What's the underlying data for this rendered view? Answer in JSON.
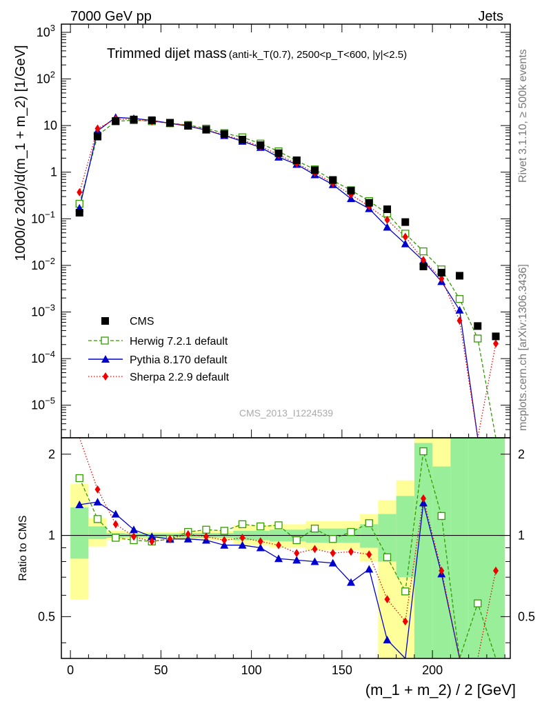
{
  "header": {
    "left": "7000 GeV pp",
    "right": "Jets"
  },
  "side_labels": {
    "top": "Rivet 3.1.10, ≥ 500k events",
    "bottom": "mcplots.cern.ch [arXiv:1306.3436]"
  },
  "chart_data": {
    "type": "scatter",
    "title": "Trimmed dijet mass",
    "subtitle": "(anti-k_T(0.7), 2500<p_T<600, |y|<2.5)",
    "watermark": "CMS_2013_I1224539",
    "xlabel": "(m_1 + m_2) / 2 [GeV]",
    "ylabel": "1000/σ 2dσ)/d(m_1 + m_2) [1/GeV]",
    "ratio_ylabel": "Ratio to CMS",
    "xlim": [
      -5,
      243
    ],
    "ylim": [
      2e-06,
      1500
    ],
    "ratio_ylim": [
      0.35,
      2.3
    ],
    "log_y": true,
    "legend_position": "bottom-left",
    "x_ticks": [
      "0",
      "50",
      "100",
      "150",
      "200"
    ],
    "y_ticks": [
      "10^-5",
      "10^-4",
      "10^-3",
      "10^-2",
      "10^-1",
      "1",
      "10",
      "10^2",
      "10^3"
    ],
    "ratio_ticks": [
      "0.5",
      "1",
      "2"
    ],
    "x": [
      5,
      15,
      25,
      35,
      45,
      55,
      65,
      75,
      85,
      95,
      105,
      115,
      125,
      135,
      145,
      155,
      165,
      175,
      185,
      195,
      205,
      215,
      225,
      235
    ],
    "series": [
      {
        "name": "CMS",
        "color": "#000000",
        "marker": "square-filled",
        "values": [
          0.135,
          5.8,
          12.5,
          13.5,
          13.0,
          11.5,
          10.0,
          8.2,
          6.6,
          5.0,
          3.8,
          2.55,
          1.8,
          1.1,
          0.68,
          0.4,
          0.22,
          0.16,
          0.085,
          0.0095,
          0.007,
          0.006,
          0.0005,
          0.0003
        ]
      },
      {
        "name": "Herwig 7.2.1 default",
        "color": "#339900",
        "marker": "square-open",
        "line": "dashed",
        "values": [
          0.21,
          6.1,
          12.3,
          13.0,
          12.4,
          11.2,
          10.3,
          8.6,
          6.9,
          5.6,
          4.1,
          2.8,
          1.75,
          1.15,
          0.66,
          0.41,
          0.24,
          0.13,
          0.048,
          0.02,
          0.0082,
          0.0019,
          0.00027,
          0.0
        ]
      },
      {
        "name": "Pythia 8.170 default",
        "color": "#0000cc",
        "marker": "triangle-filled",
        "line": "solid",
        "values": [
          0.17,
          7.7,
          15.0,
          14.2,
          12.9,
          11.2,
          9.7,
          8.0,
          6.1,
          4.6,
          3.4,
          2.1,
          1.47,
          0.88,
          0.54,
          0.27,
          0.165,
          0.066,
          0.029,
          0.0125,
          0.0045,
          0.0011,
          0.0,
          0.0
        ]
      },
      {
        "name": "Sherpa 2.2.9 default",
        "color": "#ee0000",
        "marker": "diamond-filled",
        "line": "dotted",
        "values": [
          0.37,
          8.6,
          13.8,
          13.4,
          12.3,
          11.2,
          10.1,
          8.1,
          6.3,
          4.9,
          3.6,
          2.35,
          1.55,
          0.97,
          0.58,
          0.33,
          0.185,
          0.095,
          0.041,
          0.013,
          0.0052,
          0.00065,
          0.0,
          0.00021
        ]
      }
    ],
    "ratio_series": [
      {
        "name": "Herwig 7.2.1 default",
        "values": [
          1.63,
          1.15,
          0.98,
          0.96,
          0.95,
          0.97,
          1.03,
          1.05,
          1.04,
          1.1,
          1.08,
          1.09,
          0.96,
          1.06,
          0.97,
          1.03,
          1.11,
          0.83,
          0.62,
          2.05,
          1.18,
          0.32,
          0.56,
          0.0
        ]
      },
      {
        "name": "Pythia 8.170 default",
        "values": [
          1.3,
          1.33,
          1.2,
          1.05,
          0.99,
          0.97,
          0.97,
          0.96,
          0.92,
          0.92,
          0.9,
          0.82,
          0.81,
          0.8,
          0.79,
          0.67,
          0.75,
          0.41,
          0.34,
          1.32,
          0.72,
          0.18,
          0.0,
          0.0
        ]
      },
      {
        "name": "Sherpa 2.2.9 default",
        "values": [
          2.8,
          1.48,
          1.1,
          0.99,
          0.95,
          0.97,
          1.01,
          0.99,
          0.96,
          0.98,
          0.95,
          0.92,
          0.86,
          0.89,
          0.86,
          0.87,
          0.85,
          0.58,
          0.48,
          1.37,
          0.74,
          0.11,
          0.0,
          0.74
        ]
      }
    ],
    "ratio_bands": [
      {
        "x0": 0,
        "x1": 10,
        "green": [
          0.82,
          1.27
        ],
        "yellow": [
          0.58,
          1.55
        ]
      },
      {
        "x0": 10,
        "x1": 20,
        "green": [
          0.97,
          1.08
        ],
        "yellow": [
          0.91,
          1.16
        ]
      },
      {
        "x0": 20,
        "x1": 30,
        "green": [
          0.98,
          1.02
        ],
        "yellow": [
          0.96,
          1.04
        ]
      },
      {
        "x0": 30,
        "x1": 60,
        "green": [
          0.985,
          1.015
        ],
        "yellow": [
          0.97,
          1.03
        ]
      },
      {
        "x0": 60,
        "x1": 90,
        "green": [
          0.98,
          1.02
        ],
        "yellow": [
          0.96,
          1.04
        ]
      },
      {
        "x0": 90,
        "x1": 110,
        "green": [
          0.96,
          1.04
        ],
        "yellow": [
          0.92,
          1.09
        ]
      },
      {
        "x0": 110,
        "x1": 130,
        "green": [
          0.95,
          1.05
        ],
        "yellow": [
          0.9,
          1.1
        ]
      },
      {
        "x0": 130,
        "x1": 160,
        "green": [
          0.94,
          1.06
        ],
        "yellow": [
          0.88,
          1.13
        ]
      },
      {
        "x0": 160,
        "x1": 170,
        "green": [
          0.9,
          1.1
        ],
        "yellow": [
          0.8,
          1.2
        ]
      },
      {
        "x0": 170,
        "x1": 180,
        "green": [
          0.8,
          1.2
        ],
        "yellow": [
          0.35,
          1.35
        ]
      },
      {
        "x0": 180,
        "x1": 190,
        "green": [
          0.7,
          1.4
        ],
        "yellow": [
          0.35,
          1.6
        ]
      },
      {
        "x0": 190,
        "x1": 200,
        "green": [
          0.35,
          2.2
        ],
        "yellow": [
          0.35,
          2.3
        ]
      },
      {
        "x0": 200,
        "x1": 210,
        "green": [
          0.35,
          1.8
        ],
        "yellow": [
          0.35,
          2.3
        ]
      },
      {
        "x0": 210,
        "x1": 220,
        "green": [
          0.35,
          2.3
        ],
        "yellow": [
          0.35,
          2.3
        ]
      },
      {
        "x0": 220,
        "x1": 240,
        "green": [
          0.35,
          2.3
        ],
        "yellow": [
          0.35,
          2.3
        ]
      }
    ]
  }
}
